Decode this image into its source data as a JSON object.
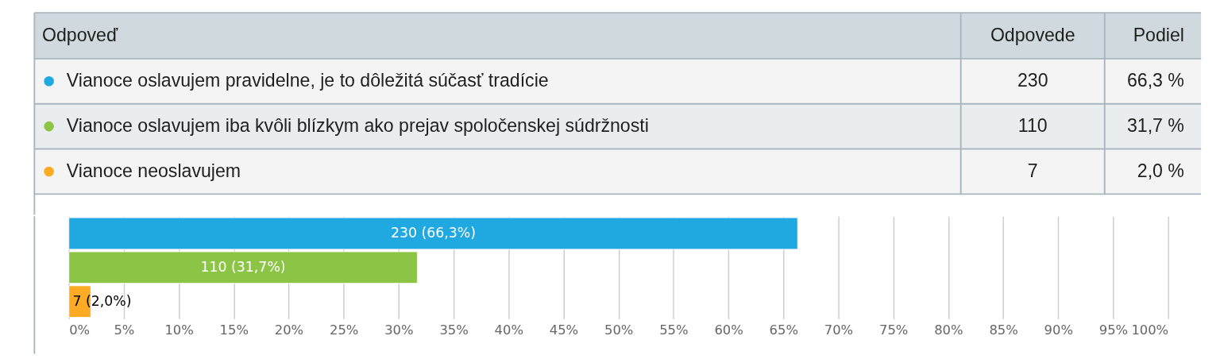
{
  "chart_data": [
    {
      "type": "other",
      "legend_title": "Odpoveď",
      "categories": [
        "Vianoce oslavujem pravidelne, je to dôležitá súčasť tradície",
        "Vianoce oslavujem iba kvôli blízkym ako prejav spoločenskej súdržnosti",
        "Vianoce neoslavujem"
      ],
      "colors": [
        "#1fa9e0",
        "#8cc546",
        "#fdab25"
      ],
      "series": [
        {
          "name": "Odpovede",
          "values": [
            230,
            110,
            7
          ],
          "value_labels": [
            "230",
            "110",
            "7"
          ]
        },
        {
          "name": "Podiel",
          "values": [
            66.3,
            31.7,
            2.0
          ],
          "value_labels": [
            "66,3 %",
            "31,7 %",
            "2,0 %"
          ]
        }
      ]
    },
    {
      "type": "bar",
      "orientation": "horizontal",
      "categories": [
        null,
        null,
        null
      ],
      "values": [
        66.3,
        31.7,
        2.0
      ],
      "colors": [
        "#1fa9e0",
        "#8cc546",
        "#fdab25"
      ],
      "value_labels": [
        "230 (66,3%)",
        "110 (31,7%)",
        "7 (2,0%)"
      ],
      "xlim": [
        0,
        100
      ],
      "xticks": [
        {
          "value": 0,
          "label": "0%"
        },
        {
          "value": 5,
          "label": "5%"
        },
        {
          "value": 10,
          "label": "10%"
        },
        {
          "value": 15,
          "label": "15%"
        },
        {
          "value": 20,
          "label": "20%"
        },
        {
          "value": 25,
          "label": "25%"
        },
        {
          "value": 30,
          "label": "30%"
        },
        {
          "value": 35,
          "label": "35%"
        },
        {
          "value": 40,
          "label": "40%"
        },
        {
          "value": 45,
          "label": "45%"
        },
        {
          "value": 50,
          "label": "50%"
        },
        {
          "value": 55,
          "label": "55%"
        },
        {
          "value": 60,
          "label": "60%"
        },
        {
          "value": 65,
          "label": "65%"
        },
        {
          "value": 70,
          "label": "70%"
        },
        {
          "value": 75,
          "label": "75%"
        },
        {
          "value": 80,
          "label": "80%"
        },
        {
          "value": 85,
          "label": "85%"
        },
        {
          "value": 90,
          "label": "90%"
        },
        {
          "value": 95,
          "label": "95%"
        },
        {
          "value": 100,
          "label": "100%"
        }
      ],
      "grid": "x",
      "tick_labels": "x"
    }
  ]
}
